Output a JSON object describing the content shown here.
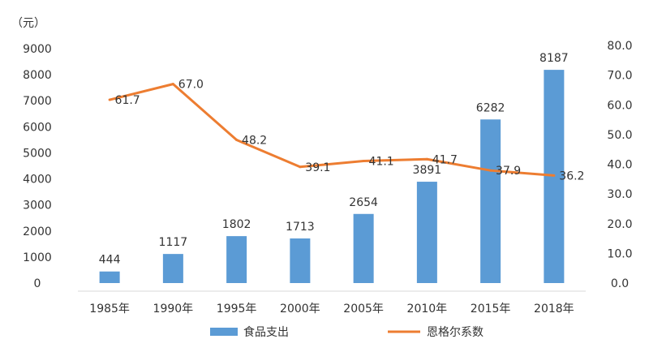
{
  "chart_data": {
    "type": "bar",
    "unit_label": "（元）",
    "categories": [
      "1985年",
      "1990年",
      "1995年",
      "2000年",
      "2005年",
      "2010年",
      "2015年",
      "2018年"
    ],
    "series": [
      {
        "name": "食品支出",
        "type": "bar",
        "axis": "left",
        "color": "#5B9BD5",
        "values": [
          444,
          1117,
          1802,
          1713,
          2654,
          3891,
          6282,
          8187
        ],
        "value_labels": [
          "444",
          "1117",
          "1802",
          "1713",
          "2654",
          "3891",
          "6282",
          "8187"
        ]
      },
      {
        "name": "恩格尔系数",
        "type": "line",
        "axis": "right",
        "color": "#ED7D31",
        "values": [
          61.7,
          67.0,
          48.2,
          39.1,
          41.1,
          41.7,
          37.9,
          36.2
        ],
        "value_labels": [
          "61.7",
          "67.0",
          "48.2",
          "39.1",
          "41.1",
          "41.7",
          "37.9",
          "36.2"
        ]
      }
    ],
    "y_left": {
      "min": 0,
      "max": 9000,
      "ticks": [
        0,
        1000,
        2000,
        3000,
        4000,
        5000,
        6000,
        7000,
        8000,
        9000
      ],
      "tick_labels": [
        "0",
        "1000",
        "2000",
        "3000",
        "4000",
        "5000",
        "6000",
        "7000",
        "8000",
        "9000"
      ]
    },
    "y_right": {
      "min": 0,
      "max": 80,
      "ticks": [
        0,
        10,
        20,
        30,
        40,
        50,
        60,
        70,
        80
      ],
      "tick_labels": [
        "0.0",
        "10.0",
        "20.0",
        "30.0",
        "40.0",
        "50.0",
        "60.0",
        "70.0",
        "80.0"
      ]
    },
    "grid": false,
    "legend_position": "bottom"
  }
}
